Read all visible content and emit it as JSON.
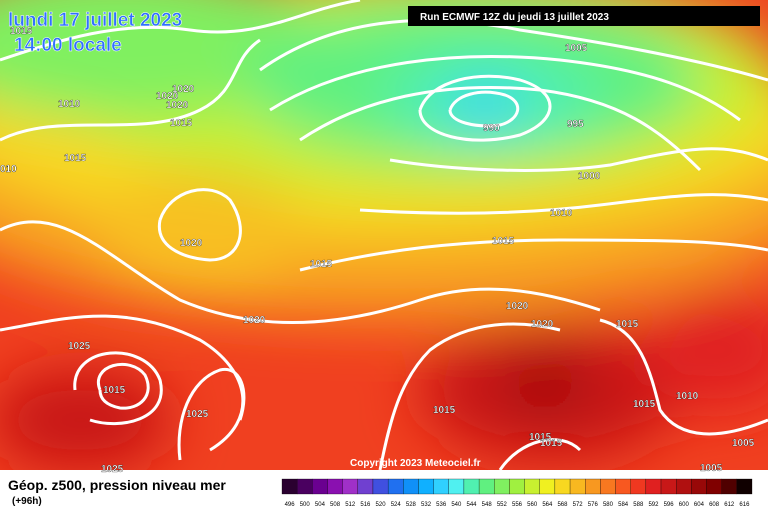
{
  "header": {
    "date": "lundi 17 juillet 2023",
    "time": "14:00 locale",
    "run": "Run ECMWF 12Z du jeudi 13 juillet 2023"
  },
  "isobar_labels": [
    "1015",
    "1010",
    "1020",
    "1020",
    "1020",
    "1015",
    "1015",
    "010",
    "1020",
    "1015",
    "1005",
    "990",
    "995",
    "1000",
    "1010",
    "1015",
    "1020",
    "1020",
    "1015",
    "1020",
    "1025",
    "1015",
    "1025",
    "1015",
    "1015",
    "1010",
    "1015",
    "1015",
    "1005",
    "1005",
    "1025"
  ],
  "copyright": "Copyright 2023 Meteociel.fr",
  "legend": {
    "title": "Géop. z500, pression niveau mer",
    "subtitle": "(+96h)",
    "ticks": [
      496,
      500,
      504,
      508,
      512,
      516,
      520,
      524,
      528,
      532,
      536,
      540,
      544,
      548,
      552,
      556,
      560,
      564,
      568,
      572,
      576,
      580,
      584,
      588,
      592,
      596,
      600,
      604,
      608,
      612,
      616
    ],
    "colors": [
      "#2a0030",
      "#4a0060",
      "#6a0090",
      "#8a10b0",
      "#a030c8",
      "#7040d0",
      "#4050e0",
      "#2070f0",
      "#1090f8",
      "#10b0ff",
      "#30d0ff",
      "#50f0f0",
      "#50f0b0",
      "#60f080",
      "#80f060",
      "#a0f040",
      "#c8f030",
      "#f0f020",
      "#f8d820",
      "#f8b820",
      "#f89820",
      "#f87820",
      "#f85820",
      "#f03820",
      "#e02020",
      "#c81818",
      "#b01010",
      "#980808",
      "#800000",
      "#500000",
      "#100000"
    ]
  }
}
